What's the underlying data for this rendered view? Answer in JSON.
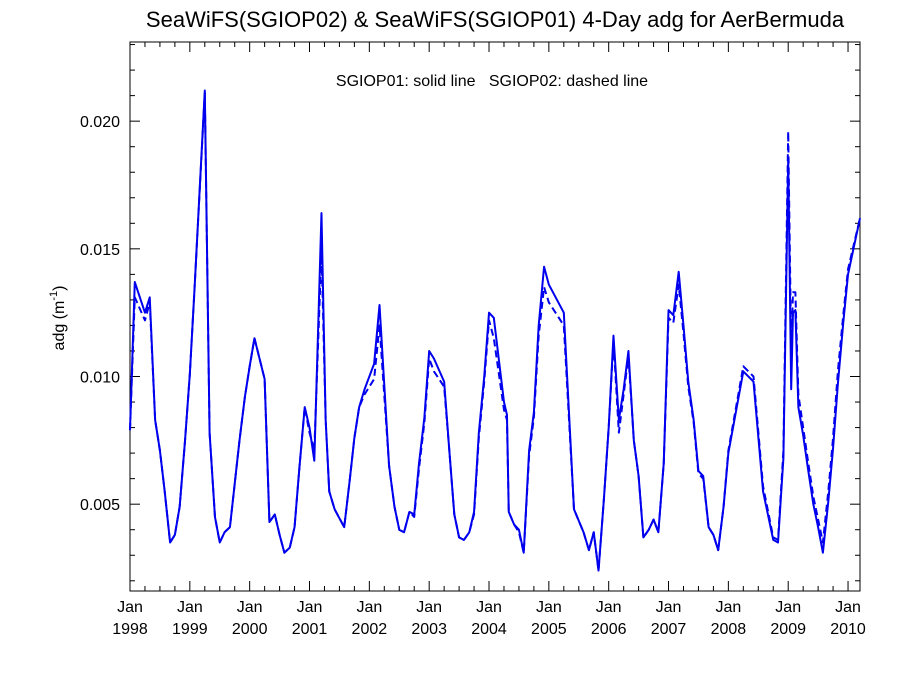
{
  "chart_data": {
    "type": "line",
    "title": "SeaWiFS(SGIOP02) & SeaWiFS(SGIOP01) 4-Day adg for AerBermuda",
    "annotation": "SGIOP01: solid line   SGIOP02: dashed line",
    "xlabel": "",
    "ylabel": "adg (m",
    "ylabel_superscript": "-1",
    "ylabel_suffix": ")",
    "xlim": [
      1998.0,
      2010.2
    ],
    "ylim": [
      0.0016,
      0.0231
    ],
    "grid": false,
    "legend": "none",
    "line_color": "#0000ee",
    "x_ticks": [
      {
        "value": 1998,
        "month": "Jan",
        "year": "1998"
      },
      {
        "value": 1999,
        "month": "Jan",
        "year": "1999"
      },
      {
        "value": 2000,
        "month": "Jan",
        "year": "2000"
      },
      {
        "value": 2001,
        "month": "Jan",
        "year": "2001"
      },
      {
        "value": 2002,
        "month": "Jan",
        "year": "2002"
      },
      {
        "value": 2003,
        "month": "Jan",
        "year": "2003"
      },
      {
        "value": 2004,
        "month": "Jan",
        "year": "2004"
      },
      {
        "value": 2005,
        "month": "Jan",
        "year": "2005"
      },
      {
        "value": 2006,
        "month": "Jan",
        "year": "2006"
      },
      {
        "value": 2007,
        "month": "Jan",
        "year": "2007"
      },
      {
        "value": 2008,
        "month": "Jan",
        "year": "2008"
      },
      {
        "value": 2009,
        "month": "Jan",
        "year": "2009"
      },
      {
        "value": 2010,
        "month": "Jan",
        "year": "2010"
      }
    ],
    "y_ticks": [
      {
        "value": 0.005,
        "label": "0.005"
      },
      {
        "value": 0.01,
        "label": "0.010"
      },
      {
        "value": 0.015,
        "label": "0.015"
      },
      {
        "value": 0.02,
        "label": "0.020"
      }
    ],
    "series": [
      {
        "style": "solid",
        "x": [
          1998.0,
          1998.08,
          1998.25,
          1998.33,
          1998.42,
          1998.5,
          1998.58,
          1998.67,
          1998.75,
          1998.83,
          1998.92,
          1999.0,
          1999.08,
          1999.25,
          1999.33,
          1999.42,
          1999.5,
          1999.58,
          1999.67,
          1999.75,
          1999.83,
          1999.92,
          2000.0,
          2000.08,
          2000.25,
          2000.33,
          2000.42,
          2000.5,
          2000.58,
          2000.67,
          2000.75,
          2000.83,
          2000.92,
          2001.0,
          2001.08,
          2001.2,
          2001.27,
          2001.33,
          2001.42,
          2001.58,
          2001.67,
          2001.75,
          2001.83,
          2001.92,
          2002.08,
          2002.17,
          2002.33,
          2002.42,
          2002.5,
          2002.58,
          2002.67,
          2002.75,
          2002.83,
          2002.92,
          2003.0,
          2003.08,
          2003.25,
          2003.33,
          2003.42,
          2003.5,
          2003.58,
          2003.67,
          2003.75,
          2003.83,
          2003.92,
          2004.0,
          2004.08,
          2004.25,
          2004.3,
          2004.33,
          2004.42,
          2004.5,
          2004.58,
          2004.67,
          2004.75,
          2004.83,
          2004.92,
          2005.0,
          2005.25,
          2005.42,
          2005.58,
          2005.67,
          2005.75,
          2005.83,
          2005.92,
          2006.0,
          2006.08,
          2006.17,
          2006.25,
          2006.33,
          2006.42,
          2006.5,
          2006.58,
          2006.67,
          2006.75,
          2006.83,
          2006.92,
          2007.0,
          2007.08,
          2007.17,
          2007.25,
          2007.33,
          2007.42,
          2007.5,
          2007.58,
          2007.67,
          2007.75,
          2007.83,
          2007.92,
          2008.0,
          2008.25,
          2008.42,
          2008.58,
          2008.75,
          2008.83,
          2008.92,
          2009.0,
          2009.05,
          2009.08,
          2009.12,
          2009.17,
          2009.25,
          2009.33,
          2009.42,
          2009.5,
          2009.58,
          2009.67,
          2009.75,
          2009.83,
          2009.92,
          2010.0,
          2010.2
        ],
        "y": [
          0.0079,
          0.0137,
          0.0125,
          0.0131,
          0.0083,
          0.0071,
          0.0055,
          0.0035,
          0.0038,
          0.0049,
          0.0075,
          0.0101,
          0.0135,
          0.0212,
          0.0078,
          0.0045,
          0.0035,
          0.0039,
          0.0041,
          0.0058,
          0.0075,
          0.0092,
          0.0104,
          0.0115,
          0.0099,
          0.0043,
          0.0046,
          0.0038,
          0.0031,
          0.0033,
          0.0041,
          0.0064,
          0.0088,
          0.008,
          0.0067,
          0.0164,
          0.0083,
          0.0055,
          0.0048,
          0.0041,
          0.0059,
          0.0076,
          0.0088,
          0.0095,
          0.0105,
          0.0128,
          0.0065,
          0.0049,
          0.004,
          0.0039,
          0.0047,
          0.0046,
          0.0066,
          0.0084,
          0.011,
          0.0107,
          0.0098,
          0.0073,
          0.0046,
          0.0037,
          0.0036,
          0.0039,
          0.0047,
          0.0078,
          0.01,
          0.0125,
          0.0123,
          0.009,
          0.0085,
          0.0047,
          0.0042,
          0.004,
          0.0031,
          0.0071,
          0.0086,
          0.012,
          0.0143,
          0.0136,
          0.0125,
          0.0048,
          0.0039,
          0.0032,
          0.0039,
          0.0024,
          0.0052,
          0.008,
          0.0116,
          0.0083,
          0.0095,
          0.011,
          0.0075,
          0.0061,
          0.0037,
          0.004,
          0.0044,
          0.0039,
          0.0066,
          0.0126,
          0.0124,
          0.0141,
          0.012,
          0.0098,
          0.0083,
          0.0063,
          0.0061,
          0.0041,
          0.0038,
          0.0032,
          0.0049,
          0.007,
          0.0102,
          0.0098,
          0.0055,
          0.0036,
          0.0035,
          0.0068,
          0.0185,
          0.0095,
          0.0125,
          0.0126,
          0.0088,
          0.0077,
          0.0064,
          0.005,
          0.0041,
          0.0031,
          0.0051,
          0.0072,
          0.0097,
          0.0121,
          0.014,
          0.0162
        ]
      },
      {
        "style": "dashed",
        "x": [
          1998.0,
          1998.08,
          1998.25,
          1998.33,
          1998.42,
          1998.5,
          1998.58,
          1998.67,
          1998.75,
          1998.83,
          1998.92,
          1999.0,
          1999.08,
          1999.25,
          1999.33,
          1999.42,
          1999.5,
          1999.58,
          1999.67,
          1999.75,
          1999.83,
          1999.92,
          2000.0,
          2000.08,
          2000.25,
          2000.33,
          2000.42,
          2000.5,
          2000.58,
          2000.67,
          2000.75,
          2000.83,
          2000.92,
          2001.0,
          2001.08,
          2001.2,
          2001.27,
          2001.33,
          2001.42,
          2001.58,
          2001.67,
          2001.75,
          2001.83,
          2001.92,
          2002.08,
          2002.17,
          2002.33,
          2002.42,
          2002.5,
          2002.58,
          2002.67,
          2002.75,
          2002.83,
          2002.92,
          2003.0,
          2003.08,
          2003.25,
          2003.33,
          2003.42,
          2003.5,
          2003.58,
          2003.67,
          2003.75,
          2003.83,
          2003.92,
          2004.0,
          2004.08,
          2004.25,
          2004.3,
          2004.33,
          2004.42,
          2004.5,
          2004.58,
          2004.67,
          2004.75,
          2004.83,
          2004.92,
          2005.0,
          2005.25,
          2005.42,
          2005.58,
          2005.67,
          2005.75,
          2005.83,
          2005.92,
          2006.0,
          2006.08,
          2006.17,
          2006.25,
          2006.33,
          2006.42,
          2006.5,
          2006.58,
          2006.67,
          2006.75,
          2006.83,
          2006.92,
          2007.0,
          2007.08,
          2007.17,
          2007.25,
          2007.33,
          2007.42,
          2007.5,
          2007.58,
          2007.67,
          2007.75,
          2007.83,
          2007.92,
          2008.0,
          2008.25,
          2008.42,
          2008.58,
          2008.75,
          2008.83,
          2008.92,
          2009.0,
          2009.05,
          2009.08,
          2009.12,
          2009.17,
          2009.25,
          2009.33,
          2009.42,
          2009.5,
          2009.58,
          2009.67,
          2009.75,
          2009.83,
          2009.92,
          2010.0,
          2010.2
        ],
        "y": [
          0.0079,
          0.0131,
          0.0122,
          0.0129,
          0.0083,
          0.0071,
          0.0055,
          0.0035,
          0.0038,
          0.0049,
          0.0075,
          0.0101,
          0.0135,
          0.0211,
          0.0078,
          0.0045,
          0.0035,
          0.0039,
          0.0041,
          0.0058,
          0.0075,
          0.0092,
          0.0104,
          0.0115,
          0.0099,
          0.0043,
          0.0046,
          0.0038,
          0.0031,
          0.0033,
          0.0041,
          0.0064,
          0.0088,
          0.0078,
          0.0071,
          0.015,
          0.0083,
          0.0055,
          0.0048,
          0.0041,
          0.0059,
          0.0076,
          0.0088,
          0.0093,
          0.0099,
          0.012,
          0.0065,
          0.0049,
          0.004,
          0.0039,
          0.0047,
          0.0045,
          0.0064,
          0.0082,
          0.0107,
          0.0102,
          0.0096,
          0.0073,
          0.0046,
          0.0037,
          0.0036,
          0.0039,
          0.0046,
          0.0076,
          0.0098,
          0.0122,
          0.0115,
          0.0087,
          0.0083,
          0.0047,
          0.0042,
          0.0039,
          0.0031,
          0.0069,
          0.0084,
          0.0116,
          0.0135,
          0.0129,
          0.012,
          0.0048,
          0.0039,
          0.0032,
          0.0039,
          0.0024,
          0.0052,
          0.008,
          0.0114,
          0.0078,
          0.0093,
          0.0108,
          0.0075,
          0.0061,
          0.0037,
          0.004,
          0.0044,
          0.0039,
          0.0066,
          0.0123,
          0.0121,
          0.0136,
          0.0117,
          0.0096,
          0.0082,
          0.0062,
          0.006,
          0.0041,
          0.0038,
          0.0032,
          0.0049,
          0.0071,
          0.0104,
          0.01,
          0.0057,
          0.0037,
          0.0036,
          0.0071,
          0.0196,
          0.011,
          0.0133,
          0.0133,
          0.0093,
          0.008,
          0.0067,
          0.0053,
          0.0044,
          0.0035,
          0.0055,
          0.0076,
          0.0102,
          0.0124,
          0.0142,
          0.0162
        ]
      }
    ]
  }
}
